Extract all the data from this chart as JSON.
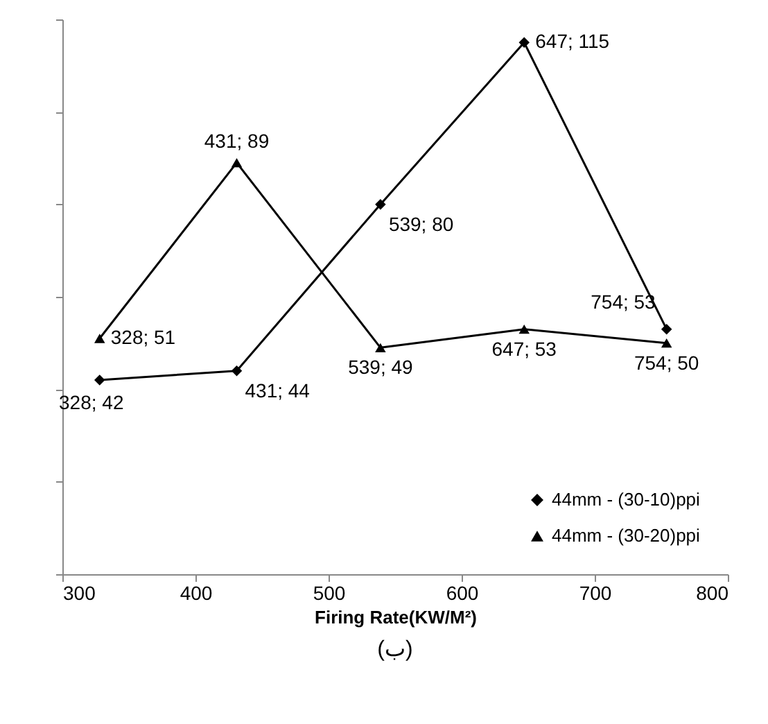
{
  "chart_data": {
    "type": "line",
    "xlabel": "Firing Rate(KW/M²)",
    "annotations": [
      "(ب)"
    ],
    "x": [
      328,
      431,
      539,
      647,
      754
    ],
    "xlim": [
      300,
      800
    ],
    "xticks": [
      300,
      400,
      500,
      600,
      700,
      800
    ],
    "ylim": [
      0,
      120
    ],
    "yticks": [
      0,
      20,
      40,
      60,
      80,
      100,
      120
    ],
    "tick_labels": "x",
    "grid": false,
    "legend": "bottom right",
    "line_style": "solid",
    "series": [
      {
        "name": "44mm - (30-10)ppi",
        "color": "#000000",
        "marker": "diamond",
        "values": [
          42,
          44,
          80,
          115,
          53
        ],
        "value_labels": [
          "328; 42",
          "431; 44",
          "539; 80",
          "647; 115",
          "754; 53"
        ]
      },
      {
        "name": "44mm - (30-20)ppi",
        "color": "#000000",
        "marker": "triangle",
        "values": [
          51,
          89,
          49,
          53,
          50
        ],
        "value_labels": [
          "328; 51",
          "431; 89",
          "539; 49",
          "647; 53",
          "754; 50"
        ]
      }
    ]
  }
}
